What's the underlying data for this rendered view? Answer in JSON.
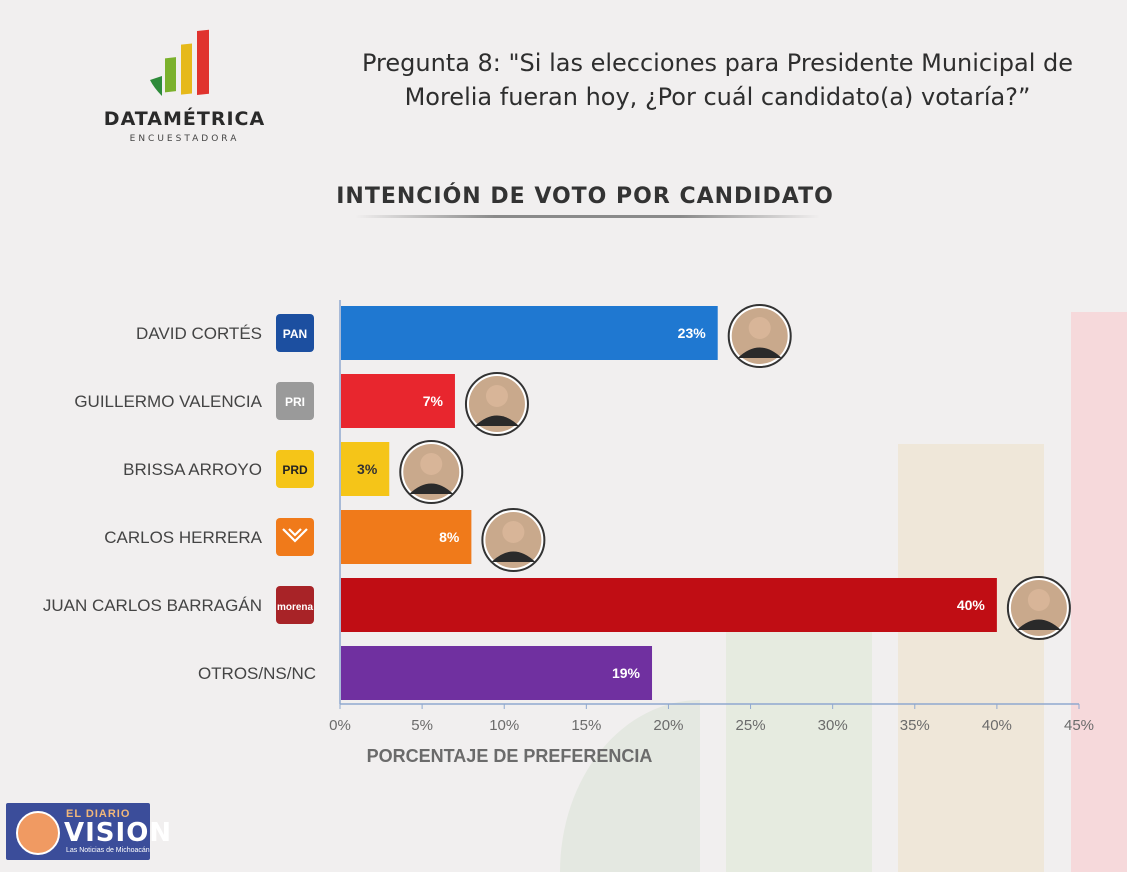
{
  "logo": {
    "brand": "DATAMÉTRICA",
    "subtitle": "ENCUESTADORA"
  },
  "question": {
    "line1": "Pregunta 8: \"Si las elecciones para Presidente Municipal de",
    "line2": "Morelia fueran hoy, ¿Por cuál candidato(a) votaría?”"
  },
  "watermark": {
    "small": "EL DIARIO",
    "big": "VISION",
    "tagline": "Las Noticias de Michoacán"
  },
  "colors": {
    "background": "#f1efef",
    "axis": "#8fa8cf"
  },
  "chart_data": {
    "type": "bar",
    "orientation": "horizontal",
    "title": "INTENCIÓN DE VOTO POR CANDIDATO",
    "xlabel": "PORCENTAJE DE PREFERENCIA",
    "ylabel": "",
    "xlim": [
      0,
      45
    ],
    "x_ticks": [
      "0%",
      "5%",
      "10%",
      "15%",
      "20%",
      "25%",
      "30%",
      "35%",
      "40%",
      "45%"
    ],
    "categories": [
      "DAVID CORTÉS",
      "GUILLERMO VALENCIA",
      "BRISSA ARROYO",
      "CARLOS HERRERA",
      "JUAN CARLOS BARRAGÁN",
      "OTROS/NS/NC"
    ],
    "values": [
      23,
      7,
      3,
      8,
      40,
      19
    ],
    "value_labels": [
      "23%",
      "7%",
      "3%",
      "8%",
      "40%",
      "19%"
    ],
    "bar_colors": [
      "#1f78d1",
      "#e8262e",
      "#f5c518",
      "#f07a1a",
      "#c00d14",
      "#7030a0"
    ],
    "party_logos": [
      {
        "label": "PAN",
        "icon": "pan-logo-icon",
        "bg": "#1c4fa0"
      },
      {
        "label": "PRI",
        "icon": "pri-logo-icon",
        "bg": "#9a9a9a"
      },
      {
        "label": "PRD",
        "icon": "prd-logo-icon",
        "bg": "#f5c518"
      },
      {
        "label": "",
        "icon": "movimiento-ciudadano-logo-icon",
        "bg": "#f07a1a"
      },
      {
        "label": "morena",
        "icon": "morena-logo-icon",
        "bg": "#a82327"
      },
      null
    ],
    "candidate_photos": [
      true,
      true,
      true,
      true,
      true,
      false
    ],
    "grid": false,
    "legend": "none"
  }
}
